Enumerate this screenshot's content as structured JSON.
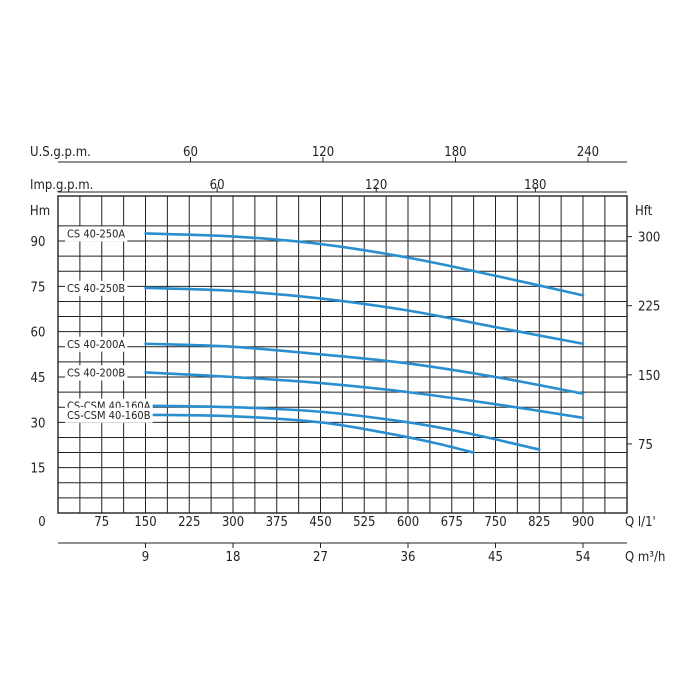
{
  "chart_data": {
    "type": "line",
    "x_axis_label": "Q l/1'",
    "x_ticks": [
      0,
      75,
      150,
      225,
      300,
      375,
      450,
      525,
      600,
      675,
      750,
      825,
      900
    ],
    "x_range": [
      0,
      975
    ],
    "x_axis2_label": "Q m³/h",
    "x_axis2_ticks": [
      9,
      18,
      27,
      36,
      45,
      54
    ],
    "top_axis1_label": "U.S.g.p.m.",
    "top_axis1_ticks": [
      60,
      120,
      180,
      240
    ],
    "top_axis2_label": "Imp.g.p.m.",
    "top_axis2_ticks": [
      60,
      120,
      180
    ],
    "y_left_label": "Hm",
    "y_left_ticks": [
      15,
      30,
      45,
      60,
      75,
      90
    ],
    "y_range": [
      0,
      100
    ],
    "y_right_label": "Hft",
    "y_right_ticks": [
      75,
      150,
      225,
      300
    ],
    "grid": true,
    "series": [
      {
        "name": "CS 40-250A",
        "x": [
          150,
          300,
          450,
          600,
          750,
          900
        ],
        "y": [
          92.5,
          91.5,
          89,
          84.5,
          78.5,
          72
        ]
      },
      {
        "name": "CS 40-250B",
        "x": [
          150,
          300,
          450,
          600,
          750,
          900
        ],
        "y": [
          74.5,
          73.5,
          71,
          67,
          61.5,
          56
        ]
      },
      {
        "name": "CS 40-200A",
        "x": [
          150,
          300,
          450,
          600,
          750,
          900
        ],
        "y": [
          56,
          55,
          52.5,
          49.5,
          45,
          39.5
        ]
      },
      {
        "name": "CS 40-200B",
        "x": [
          150,
          300,
          450,
          600,
          750,
          900
        ],
        "y": [
          46.5,
          45,
          43,
          40,
          36,
          31.5
        ]
      },
      {
        "name": "CS-CSM 40-160A",
        "x": [
          150,
          300,
          450,
          600,
          700,
          825
        ],
        "y": [
          35.5,
          35,
          33.5,
          30,
          26.5,
          21
        ]
      },
      {
        "name": "CS-CSM 40-160B",
        "x": [
          150,
          300,
          450,
          575,
          650,
          712
        ],
        "y": [
          32.5,
          32,
          30,
          26,
          23,
          20
        ]
      }
    ]
  }
}
